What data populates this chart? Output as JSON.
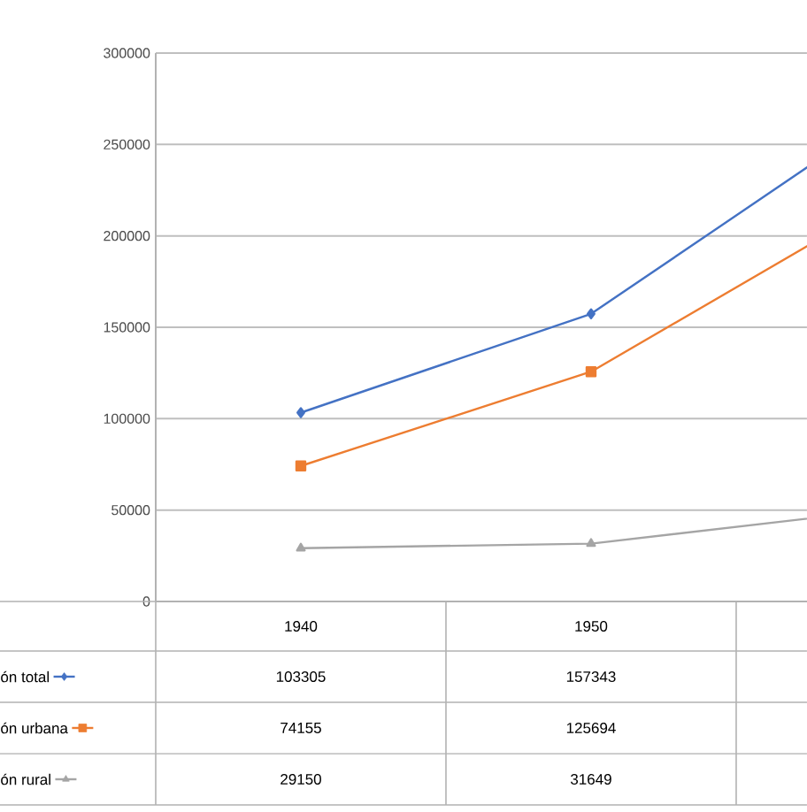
{
  "chart_data": {
    "type": "line",
    "categories": [
      "1940",
      "1950",
      null
    ],
    "series": [
      {
        "name": "ón total",
        "color": "#4472c4",
        "marker": "diamond",
        "values": [
          103305,
          157343,
          265000
        ],
        "value_labels": [
          "103305",
          "157343",
          null
        ]
      },
      {
        "name": "ón urbana",
        "color": "#ed7d31",
        "marker": "square",
        "values": [
          74155,
          125694,
          218000
        ],
        "value_labels": [
          "74155",
          "125694",
          null
        ]
      },
      {
        "name": "ón rural",
        "color": "#a5a5a5",
        "marker": "triangle",
        "values": [
          29150,
          31649,
          50000
        ],
        "value_labels": [
          "29150",
          "31649",
          null
        ]
      }
    ],
    "ylim": [
      0,
      300000
    ],
    "yticks": [
      0,
      50000,
      100000,
      150000,
      200000,
      250000,
      300000
    ],
    "grid": "y",
    "line_style": "solid",
    "legend": "bottom left"
  }
}
